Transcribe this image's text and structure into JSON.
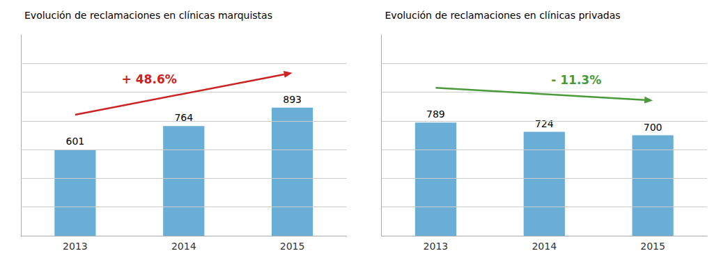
{
  "chart_data": [
    {
      "type": "bar",
      "title": "Evolución de reclamaciones en clínicas marquistas",
      "categories": [
        "2013",
        "2014",
        "2015"
      ],
      "values": [
        601,
        764,
        893
      ],
      "color": "#6aaed6",
      "ylim": [
        0,
        1400
      ],
      "yticks": [
        200,
        400,
        600,
        800,
        1000,
        1200
      ],
      "grid": true,
      "data_labels": true,
      "tick_labels": "x",
      "annotations": [
        {
          "text": "+ 48.6%",
          "color": "#cc2222"
        }
      ]
    },
    {
      "type": "bar",
      "title": "Evolución de reclamaciones en clínicas privadas",
      "categories": [
        "2013",
        "2014",
        "2015"
      ],
      "values": [
        789,
        724,
        700
      ],
      "color": "#6aaed6",
      "ylim": [
        0,
        1400
      ],
      "yticks": [
        200,
        400,
        600,
        800,
        1000,
        1200
      ],
      "grid": true,
      "data_labels": true,
      "tick_labels": "x",
      "annotations": [
        {
          "text": "- 11.3%",
          "color": "#4a9a3a"
        }
      ]
    }
  ]
}
